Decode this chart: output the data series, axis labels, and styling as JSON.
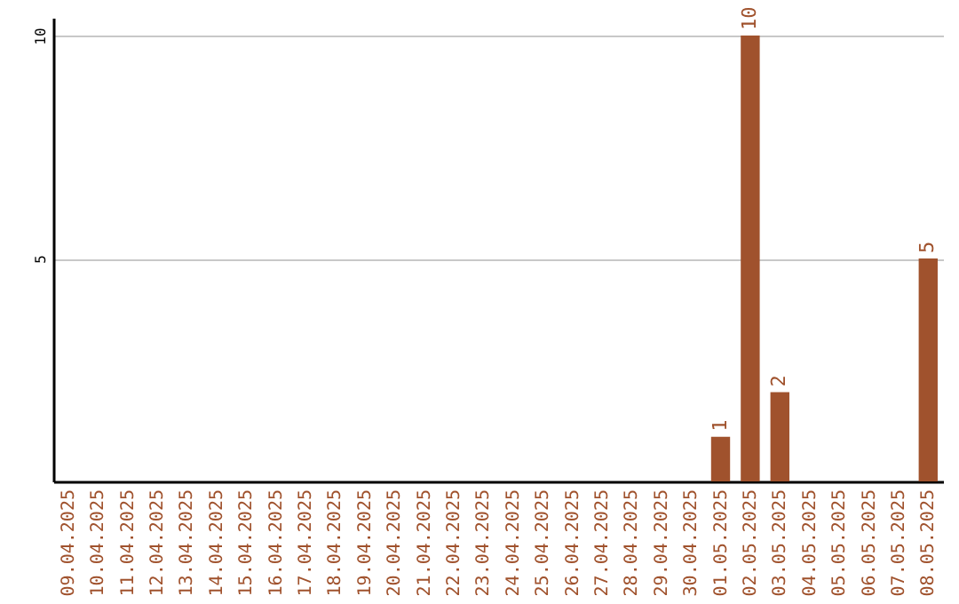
{
  "chart_data": {
    "type": "bar",
    "categories": [
      "09.04.2025",
      "10.04.2025",
      "11.04.2025",
      "12.04.2025",
      "13.04.2025",
      "14.04.2025",
      "15.04.2025",
      "16.04.2025",
      "17.04.2025",
      "18.04.2025",
      "19.04.2025",
      "20.04.2025",
      "21.04.2025",
      "22.04.2025",
      "23.04.2025",
      "24.04.2025",
      "25.04.2025",
      "26.04.2025",
      "27.04.2025",
      "28.04.2025",
      "29.04.2025",
      "30.04.2025",
      "01.05.2025",
      "02.05.2025",
      "03.05.2025",
      "04.05.2025",
      "05.05.2025",
      "06.05.2025",
      "07.05.2025",
      "08.05.2025"
    ],
    "values": [
      0,
      0,
      0,
      0,
      0,
      0,
      0,
      0,
      0,
      0,
      0,
      0,
      0,
      0,
      0,
      0,
      0,
      0,
      0,
      0,
      0,
      0,
      1,
      10,
      2,
      0,
      0,
      0,
      0,
      5
    ],
    "value_labels": [
      null,
      null,
      null,
      null,
      null,
      null,
      null,
      null,
      null,
      null,
      null,
      null,
      null,
      null,
      null,
      null,
      null,
      null,
      null,
      null,
      null,
      null,
      "1",
      "10",
      "2",
      null,
      null,
      null,
      null,
      "5"
    ],
    "color": "#a0522d",
    "ylim": [
      0,
      10.4
    ],
    "yticks": [
      5,
      10
    ],
    "grid": "y"
  }
}
